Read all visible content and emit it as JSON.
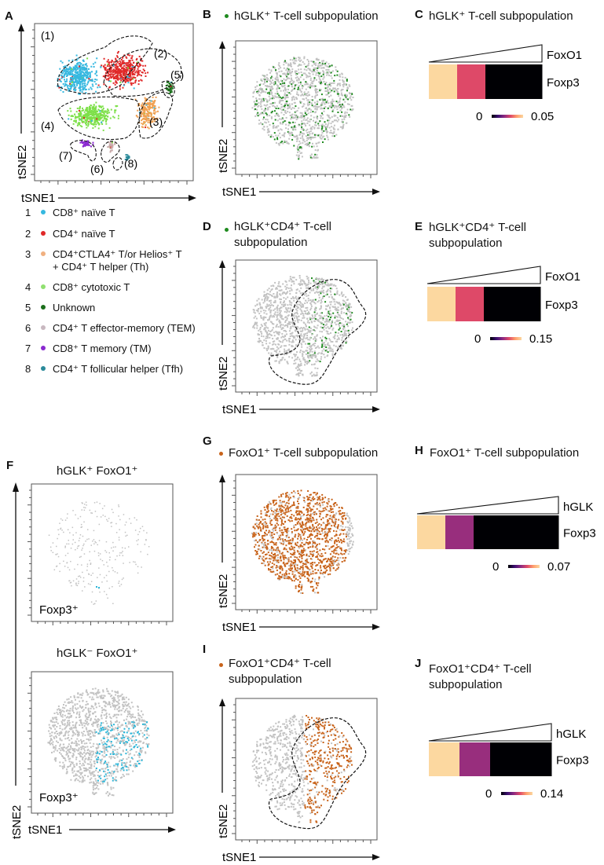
{
  "colors": {
    "gray": "#c2c2c2",
    "green": "#1e8a1e",
    "orange": "#c8631a",
    "cyan": "#2bb6d9",
    "cluster1": "#36b8e0",
    "cluster2": "#e02828",
    "cluster3": "#f0a050",
    "cluster4": "#7ee04a",
    "cluster5": "#1b6e1b",
    "cluster6": "#c8a8a8",
    "cluster7": "#8a2ad0",
    "cluster8": "#2a8a9a",
    "colorbar": [
      "#000004",
      "#3b0f70",
      "#8c2981",
      "#de4968",
      "#fe9f6d",
      "#fcd8a0"
    ]
  },
  "axes": {
    "x": "tSNE1",
    "y": "tSNE2"
  },
  "panels": {
    "A": {
      "label": "A"
    },
    "B": {
      "label": "B",
      "title": "hGLK⁺ T-cell subpopulation"
    },
    "C": {
      "label": "C",
      "title": "hGLK⁺ T-cell subpopulation"
    },
    "D": {
      "label": "D",
      "title_line1": "hGLK⁺CD4⁺ T-cell",
      "title_line2": "subpopulation"
    },
    "E": {
      "label": "E",
      "title_line1": "hGLK⁺CD4⁺ T-cell",
      "title_line2": "subpopulation"
    },
    "F": {
      "label": "F",
      "top_title": "hGLK⁺ FoxO1⁺",
      "bottom_title": "hGLK⁻ FoxO1⁺",
      "inset": "Foxp3⁺"
    },
    "G": {
      "label": "G",
      "title": "FoxO1⁺ T-cell subpopulation"
    },
    "H": {
      "label": "H",
      "title": "FoxO1⁺ T-cell subpopulation"
    },
    "I": {
      "label": "I",
      "title_line1": "FoxO1⁺CD4⁺ T-cell",
      "title_line2": "subpopulation"
    },
    "J": {
      "label": "J",
      "title_line1": "FoxO1⁺CD4⁺ T-cell",
      "title_line2": "subpopulation"
    }
  },
  "legend": [
    {
      "num": "1",
      "text": "CD8⁺ naïve T",
      "color": "#36b8e0"
    },
    {
      "num": "2",
      "text": "CD4⁺ naïve T",
      "color": "#e02828"
    },
    {
      "num": "3",
      "text": "CD4⁺CTLA4⁺ T/or Helios⁺ T",
      "text2": "+ CD4⁺ T helper (Th)",
      "color": "#f0b080"
    },
    {
      "num": "4",
      "text": "CD8⁺ cytotoxic T",
      "color": "#90e070"
    },
    {
      "num": "5",
      "text": "Unknown",
      "color": "#1b6e1b"
    },
    {
      "num": "6",
      "text": "CD4⁺ T effector-memory (TEM)",
      "color": "#c8b8c0"
    },
    {
      "num": "7",
      "text": "CD8⁺ T memory (TM)",
      "color": "#8a2ad0"
    },
    {
      "num": "8",
      "text": "CD4⁺ T follicular helper (Tfh)",
      "color": "#2a8a9a"
    }
  ],
  "cluster_labels": [
    "(1)",
    "(2)",
    "(3)",
    "(4)",
    "(5)",
    "(6)",
    "(7)",
    "(8)"
  ],
  "chart_data": [
    {
      "type": "scatter",
      "panel": "A",
      "xlabel": "tSNE1",
      "ylabel": "tSNE2",
      "clusters": 8,
      "legend": "below"
    },
    {
      "type": "scatter",
      "panel": "B",
      "xlabel": "tSNE1",
      "ylabel": "tSNE2",
      "highlight": "hGLK⁺ T-cell subpopulation"
    },
    {
      "type": "heatmap",
      "panel": "C",
      "row": "Foxp3",
      "gradient_label": "FoxO1",
      "values": [
        0.05,
        0.03,
        0.0,
        0.0
      ],
      "colorbar_min": "0",
      "colorbar_max": "0.05"
    },
    {
      "type": "scatter",
      "panel": "D",
      "xlabel": "tSNE1",
      "ylabel": "tSNE2",
      "highlight": "hGLK⁺CD4⁺ T-cell subpopulation",
      "gated": true
    },
    {
      "type": "heatmap",
      "panel": "E",
      "row": "Foxp3",
      "gradient_label": "FoxO1",
      "values": [
        0.15,
        0.09,
        0.0,
        0.0
      ],
      "colorbar_min": "0",
      "colorbar_max": "0.15"
    },
    {
      "type": "scatter",
      "panel": "F-top",
      "xlabel": "tSNE1",
      "ylabel": "tSNE2",
      "title": "hGLK⁺ FoxO1⁺",
      "highlight": "Foxp3⁺"
    },
    {
      "type": "scatter",
      "panel": "F-bottom",
      "xlabel": "tSNE1",
      "ylabel": "tSNE2",
      "title": "hGLK⁻ FoxO1⁺",
      "highlight": "Foxp3⁺"
    },
    {
      "type": "scatter",
      "panel": "G",
      "xlabel": "tSNE1",
      "ylabel": "tSNE2",
      "highlight": "FoxO1⁺ T-cell subpopulation"
    },
    {
      "type": "heatmap",
      "panel": "H",
      "row": "Foxp3",
      "gradient_label": "hGLK",
      "values": [
        0.07,
        0.03,
        0.0,
        0.0,
        0.0
      ],
      "colorbar_min": "0",
      "colorbar_max": "0.07"
    },
    {
      "type": "scatter",
      "panel": "I",
      "xlabel": "tSNE1",
      "ylabel": "tSNE2",
      "highlight": "FoxO1⁺CD4⁺ T-cell subpopulation",
      "gated": true
    },
    {
      "type": "heatmap",
      "panel": "J",
      "row": "Foxp3",
      "gradient_label": "hGLK",
      "values": [
        0.14,
        0.06,
        0.0,
        0.0
      ],
      "colorbar_min": "0",
      "colorbar_max": "0.14"
    }
  ]
}
